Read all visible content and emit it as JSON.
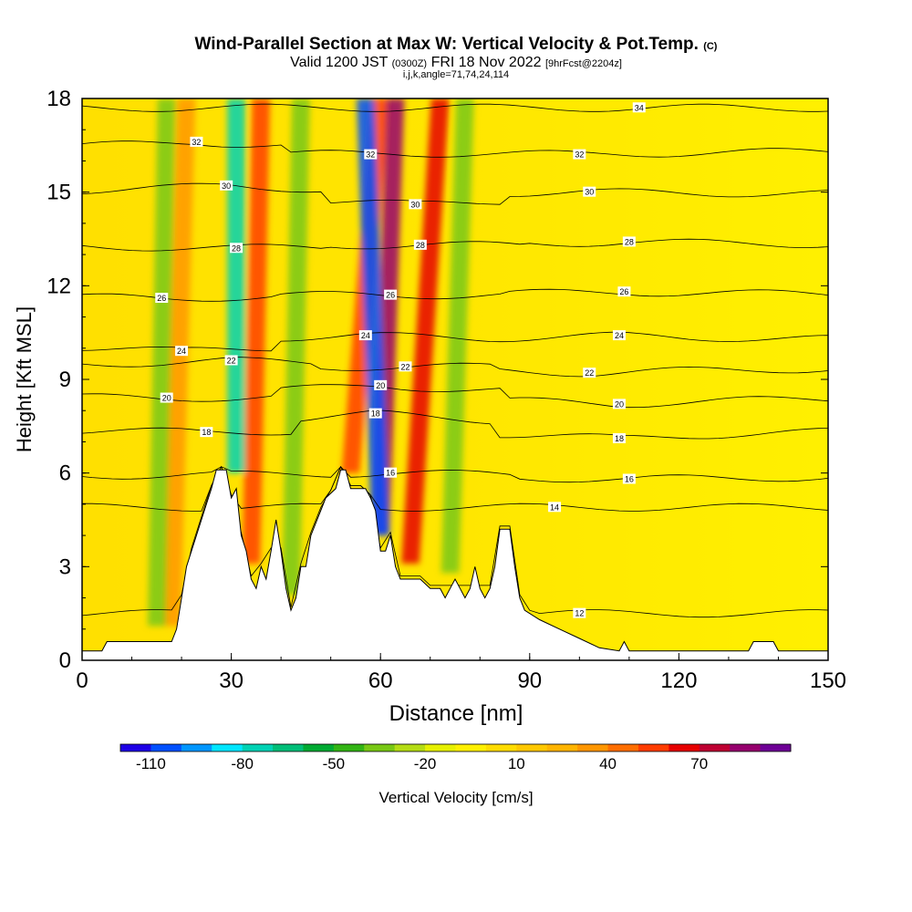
{
  "header": {
    "title_main": "Wind-Parallel Section at Max W: Vertical Velocity & Pot.Temp.",
    "title_units": "(C)",
    "valid_prefix": "Valid 1200 JST",
    "valid_utc": "(0300Z)",
    "valid_date": "FRI 18 Nov 2022",
    "forecast": "[9hrFcst@2204z]",
    "indices": "i,j,k,angle=71,74,24,114"
  },
  "chart_data": {
    "type": "heatmap",
    "xlabel": "Distance [nm]",
    "ylabel": "Height [Kft MSL]",
    "xlim": [
      0,
      150
    ],
    "ylim": [
      0,
      18
    ],
    "x_ticks": [
      0,
      30,
      60,
      90,
      120,
      150
    ],
    "y_ticks": [
      0,
      3,
      6,
      9,
      12,
      15,
      18
    ],
    "colorbar": {
      "label": "Vertical Velocity [cm/s]",
      "tick_labels": [
        -110,
        -80,
        -50,
        -20,
        10,
        40,
        70
      ],
      "levels": [
        -120,
        -110,
        -100,
        -90,
        -80,
        -70,
        -60,
        -50,
        -40,
        -30,
        -20,
        -10,
        0,
        10,
        20,
        30,
        40,
        50,
        60,
        70,
        80,
        90
      ],
      "colors": [
        "#1e00e6",
        "#0050ff",
        "#0096ff",
        "#00e6ff",
        "#00d2b4",
        "#00be78",
        "#00aa32",
        "#32b414",
        "#78c814",
        "#b4dc14",
        "#e6f000",
        "#fff000",
        "#ffdc00",
        "#ffc800",
        "#ffb400",
        "#ff9600",
        "#ff6e00",
        "#ff3c00",
        "#e60000",
        "#be0032",
        "#96006e",
        "#6e0096"
      ]
    },
    "theta_contours": [
      {
        "value": 12,
        "label_positions": [
          [
            100,
            1.5
          ]
        ]
      },
      {
        "value": 14,
        "label_positions": [
          [
            95,
            4.9
          ]
        ]
      },
      {
        "value": 16,
        "label_positions": [
          [
            62,
            6.0
          ],
          [
            110,
            5.8
          ]
        ]
      },
      {
        "value": 18,
        "label_positions": [
          [
            25,
            7.3
          ],
          [
            59,
            7.9
          ],
          [
            108,
            7.1
          ]
        ]
      },
      {
        "value": 20,
        "label_positions": [
          [
            17,
            8.4
          ],
          [
            60,
            8.8
          ],
          [
            108,
            8.2
          ]
        ]
      },
      {
        "value": 22,
        "label_positions": [
          [
            30,
            9.6
          ],
          [
            65,
            9.4
          ],
          [
            102,
            9.2
          ]
        ]
      },
      {
        "value": 24,
        "label_positions": [
          [
            20,
            9.9
          ],
          [
            57,
            10.4
          ],
          [
            108,
            10.4
          ]
        ]
      },
      {
        "value": 26,
        "label_positions": [
          [
            16,
            11.6
          ],
          [
            62,
            11.7
          ],
          [
            109,
            11.8
          ]
        ]
      },
      {
        "value": 28,
        "label_positions": [
          [
            31,
            13.2
          ],
          [
            68,
            13.3
          ],
          [
            110,
            13.4
          ]
        ]
      },
      {
        "value": 30,
        "label_positions": [
          [
            29,
            15.2
          ],
          [
            67,
            14.6
          ],
          [
            102,
            15.0
          ]
        ]
      },
      {
        "value": 32,
        "label_positions": [
          [
            23,
            16.6
          ],
          [
            58,
            16.2
          ],
          [
            100,
            16.2
          ]
        ]
      },
      {
        "value": 34,
        "label_positions": [
          [
            112,
            17.7
          ]
        ]
      }
    ],
    "terrain_kft": [
      [
        0,
        0.3
      ],
      [
        4,
        0.3
      ],
      [
        5,
        0.6
      ],
      [
        18,
        0.6
      ],
      [
        19,
        1.0
      ],
      [
        20,
        2.0
      ],
      [
        21,
        3.0
      ],
      [
        23,
        4.0
      ],
      [
        25,
        5.0
      ],
      [
        26,
        5.5
      ],
      [
        27,
        6.1
      ],
      [
        29,
        6.1
      ],
      [
        30,
        5.2
      ],
      [
        31,
        5.5
      ],
      [
        32,
        4.0
      ],
      [
        33,
        3.5
      ],
      [
        34,
        2.6
      ],
      [
        35,
        2.3
      ],
      [
        36,
        3.0
      ],
      [
        37,
        2.6
      ],
      [
        38,
        3.5
      ],
      [
        39,
        4.5
      ],
      [
        40,
        3.5
      ],
      [
        41,
        2.3
      ],
      [
        42,
        1.6
      ],
      [
        43,
        2.0
      ],
      [
        44,
        3.0
      ],
      [
        45,
        3.0
      ],
      [
        46,
        4.0
      ],
      [
        48,
        4.8
      ],
      [
        49,
        5.2
      ],
      [
        51,
        5.5
      ],
      [
        52,
        6.1
      ],
      [
        53,
        6.1
      ],
      [
        54,
        5.5
      ],
      [
        57,
        5.5
      ],
      [
        58,
        5.2
      ],
      [
        59,
        4.8
      ],
      [
        60,
        3.5
      ],
      [
        61,
        3.5
      ],
      [
        62,
        4.0
      ],
      [
        63,
        3.0
      ],
      [
        64,
        2.6
      ],
      [
        66,
        2.6
      ],
      [
        68,
        2.6
      ],
      [
        70,
        2.3
      ],
      [
        72,
        2.3
      ],
      [
        73,
        2.0
      ],
      [
        74,
        2.3
      ],
      [
        75,
        2.6
      ],
      [
        76,
        2.3
      ],
      [
        77,
        2.0
      ],
      [
        78,
        2.3
      ],
      [
        79,
        3.0
      ],
      [
        80,
        2.3
      ],
      [
        81,
        2.0
      ],
      [
        82,
        2.3
      ],
      [
        83,
        3.0
      ],
      [
        84,
        4.2
      ],
      [
        86,
        4.2
      ],
      [
        87,
        3.0
      ],
      [
        88,
        2.0
      ],
      [
        89,
        1.6
      ],
      [
        92,
        1.3
      ],
      [
        96,
        1.0
      ],
      [
        100,
        0.7
      ],
      [
        104,
        0.4
      ],
      [
        108,
        0.3
      ],
      [
        109,
        0.6
      ],
      [
        110,
        0.3
      ],
      [
        116,
        0.3
      ],
      [
        118,
        0.3
      ],
      [
        134,
        0.3
      ],
      [
        135,
        0.6
      ],
      [
        139,
        0.6
      ],
      [
        140,
        0.3
      ],
      [
        150,
        0.3
      ]
    ],
    "updraft_bands": [
      {
        "x_top": 36,
        "x_bottom": 34,
        "w_cm_s": 50
      },
      {
        "x_top": 60,
        "x_bottom": 54,
        "w_cm_s": 50
      },
      {
        "x_top": 63,
        "x_bottom": 60,
        "w_cm_s": 80
      },
      {
        "x_top": 72,
        "x_bottom": 66,
        "w_cm_s": 60
      },
      {
        "x_top": 21,
        "x_bottom": 18,
        "w_cm_s": 30
      }
    ],
    "downdraft_bands": [
      {
        "x_top": 31,
        "x_bottom": 31,
        "w_cm_s": -80
      },
      {
        "x_top": 57,
        "x_bottom": 60,
        "w_cm_s": -110
      },
      {
        "x_top": 17,
        "x_bottom": 15,
        "w_cm_s": -40
      },
      {
        "x_top": 44,
        "x_bottom": 42,
        "w_cm_s": -40
      },
      {
        "x_top": 77,
        "x_bottom": 74,
        "w_cm_s": -40
      }
    ]
  }
}
